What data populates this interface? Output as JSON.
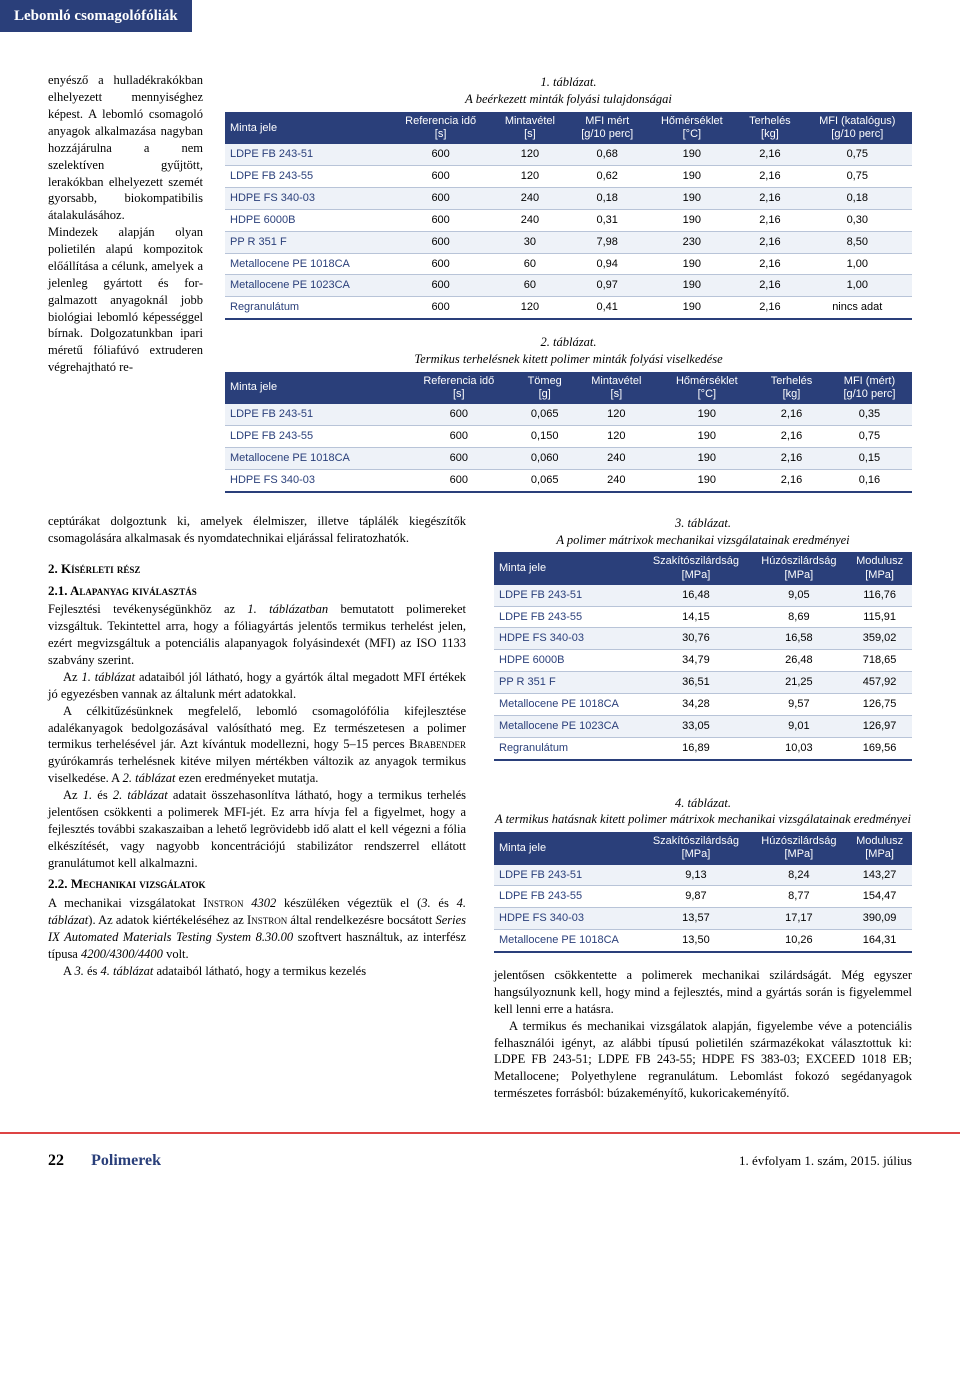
{
  "banner": {
    "text": "Lebomló csomagolófóliák",
    "bg": "#2a3f7a",
    "fg": "#ffffff"
  },
  "narrow_text": "enyésző a hulladék­rakókban elhelyezett mennyiséghez képest. A lebomló csomagoló anyagok alkalmazása nagyban hozzájárulna a nem szelektíven gyűj­tött, lerakókban elhe­lyezett szemét gyorsabb, biokompatibilis átala­kulásához.\n    Mindezek alapján olyan polietilén alapú kompozitok előállítása a célunk, amelyek a je­lenleg gyártott és for­galmazott anyagoknál jobb biológiai lebomló képességgel bírnak. Dolgozatunkban ipari méretű fóliafúvó extru­deren végrehajtható re-",
  "table1": {
    "caption_num": "1. táblázat.",
    "caption_text": "A beérkezett minták folyási tulajdonságai",
    "header_bg": "#2a3f7a",
    "columns": [
      "Minta jele",
      "Referencia idő [s]",
      "Mintavétel [s]",
      "MFI mért [g/10 perc]",
      "Hőmérséklet [°C]",
      "Terhelés [kg]",
      "MFI (katalógus) [g/10 perc]"
    ],
    "rows": [
      [
        "LDPE FB 243-51",
        "600",
        "120",
        "0,68",
        "190",
        "2,16",
        "0,75"
      ],
      [
        "LDPE FB 243-55",
        "600",
        "120",
        "0,62",
        "190",
        "2,16",
        "0,75"
      ],
      [
        "HDPE FS 340-03",
        "600",
        "240",
        "0,18",
        "190",
        "2,16",
        "0,18"
      ],
      [
        "HDPE 6000B",
        "600",
        "240",
        "0,31",
        "190",
        "2,16",
        "0,30"
      ],
      [
        "PP R 351 F",
        "600",
        "30",
        "7,98",
        "230",
        "2,16",
        "8,50"
      ],
      [
        "Metallocene PE 1018CA",
        "600",
        "60",
        "0,94",
        "190",
        "2,16",
        "1,00"
      ],
      [
        "Metallocene PE 1023CA",
        "600",
        "60",
        "0,97",
        "190",
        "2,16",
        "1,00"
      ],
      [
        "Regranulátum",
        "600",
        "120",
        "0,41",
        "190",
        "2,16",
        "nincs adat"
      ]
    ]
  },
  "table2": {
    "caption_num": "2. táblázat.",
    "caption_text": "Termikus terhelésnek kitett polimer minták folyási viselkedése",
    "columns": [
      "Minta jele",
      "Referencia idő [s]",
      "Tömeg [g]",
      "Mintavétel [s]",
      "Hőmérséklet [°C]",
      "Terhelés [kg]",
      "MFI (mért) [g/10 perc]"
    ],
    "rows": [
      [
        "LDPE FB 243-51",
        "600",
        "0,065",
        "120",
        "190",
        "2,16",
        "0,35"
      ],
      [
        "LDPE FB 243-55",
        "600",
        "0,150",
        "120",
        "190",
        "2,16",
        "0,75"
      ],
      [
        "Metallocene PE 1018CA",
        "600",
        "0,060",
        "240",
        "190",
        "2,16",
        "0,15"
      ],
      [
        "HDPE FS 340-03",
        "600",
        "0,065",
        "240",
        "190",
        "2,16",
        "0,16"
      ]
    ]
  },
  "left": {
    "p1": "ceptúrákat dolgoztunk ki, amelyek élelmiszer, illetve táplálék kiegészítők csomagolására alkalmasak és nyomdatechnikai el­járással feliratozhatók.",
    "sec2": "2. Kísérleti rész",
    "sec21": "2.1. Alapanyag kiválasztás",
    "p2a": "Fejlesztési tevékenységünkhöz az ",
    "p2b": "1. táblázatban",
    "p2c": " bemutatott po­limereket vizsgáltuk. Tekintettel arra, hogy a fóliagyártás jelen­tős termikus terhelést jelen, ezért megvizsgáltuk a potenciális alapanyagok folyásindexét (MFI) az ISO 1133 szabvány szerint.",
    "p3a": "Az ",
    "p3b": "1. táblázat",
    "p3c": " adataiból jól látható, hogy a gyártók által megadott MFI értékek jó egyezésben vannak az általunk mért adatokkal.",
    "p4a": "A célkitűzésünknek megfelelő, lebomló csomagolófólia ki­fejlesztése adalékanyagok bedolgozásával valósítható meg. Ez természetesen a polimer termikus terhelésével jár. Azt kíván­tuk modellezni, hogy 5–15 perces ",
    "p4b": "Brabender",
    "p4c": " gyúrókamrás terhelésnek kitéve milyen mértékben változik az anyagok ter­mikus viselkedése. A ",
    "p4d": "2. táblázat",
    "p4e": " ezen eredményeket mutatja.",
    "p5a": "Az ",
    "p5b": "1.",
    "p5c": " és ",
    "p5d": "2. táblázat",
    "p5e": " adatait összehasonlítva látható, hogy a termikus terhelés jelentősen csökkenti a polimerek MFI-jét. Ez arra hívja fel a figyelmet, hogy a fejlesztés további szaka­szaiban a lehető legrövidebb idő alatt el kell végezni a fólia el­készítését, vagy nagyobb koncentrációjú stabilizátor rendszer­rel ellátott granulátumot kell alkalmazni.",
    "sec22": "2.2. Mechanikai vizsgálatok",
    "p6a": "A mechanikai vizsgálatokat ",
    "p6b": "Instron",
    "p6c": " ",
    "p6d": "4302",
    "p6e": " készüléken végez­tük el (",
    "p6f": "3.",
    "p6g": " és ",
    "p6h": "4. táblázat",
    "p6i": "). Az adatok kiértékeléséhez az ",
    "p6j": "Instron",
    "p6k": " által rendelkezésre bocsátott ",
    "p6l": "Series IX Automated Materials Testing System 8.30.00",
    "p6m": " szoftvert használtuk, az interfész típusa ",
    "p6n": "4200/4300/4400",
    "p6o": " volt.",
    "p7a": "A ",
    "p7b": "3.",
    "p7c": " és ",
    "p7d": "4. táblázat",
    "p7e": " adataiból látható, hogy a termikus kezelés"
  },
  "table3": {
    "caption_num": "3. táblázat.",
    "caption_text": "A polimer mátrixok mechanikai vizsgálatainak eredményei",
    "columns": [
      "Minta jele",
      "Szakítószilárdság [MPa]",
      "Húzószilárdság [MPa]",
      "Modulusz [MPa]"
    ],
    "rows": [
      [
        "LDPE FB 243-51",
        "16,48",
        "9,05",
        "116,76"
      ],
      [
        "LDPE FB 243-55",
        "14,15",
        "8,69",
        "115,91"
      ],
      [
        "HDPE FS 340-03",
        "30,76",
        "16,58",
        "359,02"
      ],
      [
        "HDPE 6000B",
        "34,79",
        "26,48",
        "718,65"
      ],
      [
        "PP R 351 F",
        "36,51",
        "21,25",
        "457,92"
      ],
      [
        "Metallocene PE 1018CA",
        "34,28",
        "9,57",
        "126,75"
      ],
      [
        "Metallocene PE 1023CA",
        "33,05",
        "9,01",
        "126,97"
      ],
      [
        "Regranulátum",
        "16,89",
        "10,03",
        "169,56"
      ]
    ]
  },
  "table4": {
    "caption_num": "4. táblázat.",
    "caption_text": "A termikus hatásnak kitett polimer mátrixok mechanikai vizsgálatainak eredményei",
    "columns": [
      "Minta jele",
      "Szakítószilárdság [MPa]",
      "Húzószilárdság [MPa]",
      "Modulusz [MPa]"
    ],
    "rows": [
      [
        "LDPE FB 243-51",
        "9,13",
        "8,24",
        "143,27"
      ],
      [
        "LDPE FB 243-55",
        "9,87",
        "8,77",
        "154,47"
      ],
      [
        "HDPE FS 340-03",
        "13,57",
        "17,17",
        "390,09"
      ],
      [
        "Metallocene PE 1018CA",
        "13,50",
        "10,26",
        "164,31"
      ]
    ]
  },
  "right": {
    "p1": "jelentősen csökkentette a polimerek mechanikai szilárdságát. Még egyszer hangsúlyoznunk kell, hogy mind a fejlesztés, mind a gyártás során is figyelemmel kell lenni erre a hatásra.",
    "p2": "A termikus és mechanikai vizsgálatok alapján, figyelembe véve a potenciális felhasználói igényt, az alábbi típusú polie­tilén származékokat választottuk ki: LDPE FB 243-51; LDPE FB 243-55; HDPE FS 383-03; EXCEED 1018 EB; Metallocene; Polyethylene regranulátum. Lebomlást fokozó segédanyagok természetes forrásból: búzakeményítő, kukoricakeményítő."
  },
  "footer": {
    "page": "22",
    "journal": "Polimerek",
    "issue": "1. évfolyam 1. szám, 2015. július"
  },
  "colors": {
    "header_bg": "#2a3f7a",
    "row_alt": "#eef2f8",
    "accent_rule": "#d44"
  }
}
